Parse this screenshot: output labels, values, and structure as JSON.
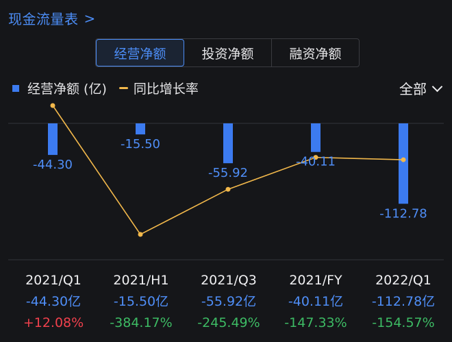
{
  "header": {
    "title": "现金流量表",
    "chevron": ">"
  },
  "tabs": [
    {
      "label": "经营净额",
      "active": true
    },
    {
      "label": "投资净额",
      "active": false
    },
    {
      "label": "融资净额",
      "active": false
    }
  ],
  "legend": {
    "bar_label": "经营净额 (亿)",
    "line_label": "同比增长率",
    "bar_color": "#3c7bf0",
    "line_color": "#f2b84b"
  },
  "range_selector": {
    "label": "全部"
  },
  "colors": {
    "accent": "#4c8df6",
    "up": "#f0414d",
    "down": "#3dbb64"
  },
  "chart_data": {
    "type": "bar",
    "categories": [
      "2021/Q1",
      "2021/H1",
      "2021/Q3",
      "2021/FY",
      "2022/Q1"
    ],
    "series": [
      {
        "name": "经营净额 (亿)",
        "type": "bar",
        "values": [
          -44.3,
          -15.5,
          -55.92,
          -40.11,
          -112.78
        ]
      },
      {
        "name": "同比增长率",
        "type": "line",
        "unit": "%",
        "values": [
          12.08,
          -384.17,
          -245.49,
          -147.33,
          -154.57
        ]
      }
    ],
    "bar_labels": [
      "-44.30",
      "-15.50",
      "-55.92",
      "-40.11",
      "-112.78"
    ]
  },
  "table": {
    "categories": [
      "2021/Q1",
      "2021/H1",
      "2021/Q3",
      "2021/FY",
      "2022/Q1"
    ],
    "values": [
      "-44.30亿",
      "-15.50亿",
      "-55.92亿",
      "-40.11亿",
      "-112.78亿"
    ],
    "growth": [
      "+12.08%",
      "-384.17%",
      "-245.49%",
      "-147.33%",
      "-154.57%"
    ]
  }
}
